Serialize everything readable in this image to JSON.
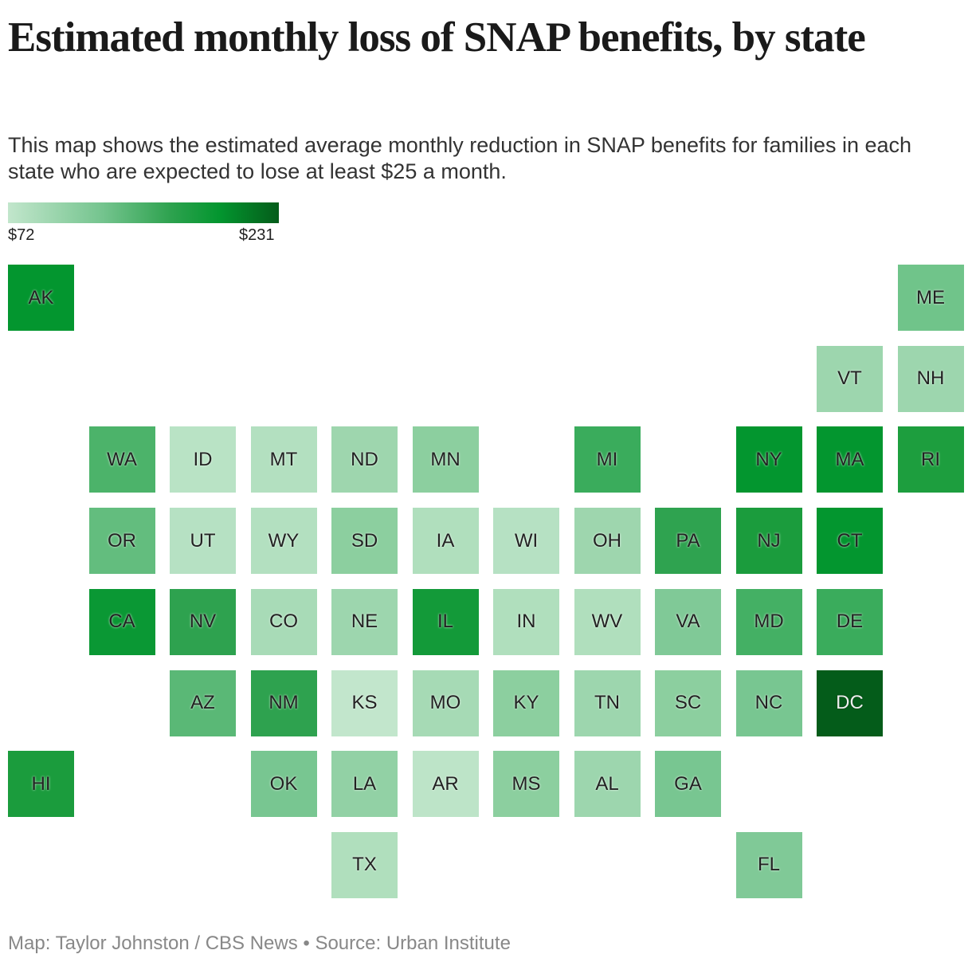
{
  "title": "Estimated monthly loss of SNAP benefits, by state",
  "subtitle": "This map shows the estimated average monthly reduction in SNAP benefits for families in each state who are expected to lose at least $25 a month.",
  "legend": {
    "min_label": "$72",
    "max_label": "$231",
    "min_color": "#c2e6cc",
    "max_color": "#045c1a"
  },
  "credit": "Map: Taylor Johnston / CBS News • Source: Urban Institute",
  "tiles": [
    {
      "state": "AK",
      "color": "#03962f"
    },
    {
      "state": "ME",
      "color": "#70c48a"
    },
    {
      "state": "VT",
      "color": "#9dd6ae"
    },
    {
      "state": "NH",
      "color": "#9dd6ae"
    },
    {
      "state": "WA",
      "color": "#4cb36a"
    },
    {
      "state": "ID",
      "color": "#b9e3c5"
    },
    {
      "state": "MT",
      "color": "#b3e0c0"
    },
    {
      "state": "ND",
      "color": "#9ed6ae"
    },
    {
      "state": "MN",
      "color": "#8ccf9f"
    },
    {
      "state": "MI",
      "color": "#3aac5c"
    },
    {
      "state": "NY",
      "color": "#03962f"
    },
    {
      "state": "MA",
      "color": "#03962f"
    },
    {
      "state": "RI",
      "color": "#1d9e3e"
    },
    {
      "state": "OR",
      "color": "#63bd7e"
    },
    {
      "state": "UT",
      "color": "#b6e1c3"
    },
    {
      "state": "WY",
      "color": "#b3e0c0"
    },
    {
      "state": "SD",
      "color": "#8ccf9f"
    },
    {
      "state": "IA",
      "color": "#b0dfbd"
    },
    {
      "state": "WI",
      "color": "#b6e1c3"
    },
    {
      "state": "OH",
      "color": "#9ed6ae"
    },
    {
      "state": "PA",
      "color": "#2fa350"
    },
    {
      "state": "NJ",
      "color": "#1b9c3d"
    },
    {
      "state": "CT",
      "color": "#03962f"
    },
    {
      "state": "CA",
      "color": "#0a9834"
    },
    {
      "state": "NV",
      "color": "#2ea24f"
    },
    {
      "state": "CO",
      "color": "#a8dbb7"
    },
    {
      "state": "NE",
      "color": "#9dd6ae"
    },
    {
      "state": "IL",
      "color": "#139a39"
    },
    {
      "state": "IN",
      "color": "#b0dfbd"
    },
    {
      "state": "WV",
      "color": "#b0dfbd"
    },
    {
      "state": "VA",
      "color": "#80c997"
    },
    {
      "state": "MD",
      "color": "#44b064"
    },
    {
      "state": "DE",
      "color": "#3aac5c"
    },
    {
      "state": "AZ",
      "color": "#5ab876"
    },
    {
      "state": "NM",
      "color": "#2ea24f"
    },
    {
      "state": "KS",
      "color": "#c2e6cc"
    },
    {
      "state": "MO",
      "color": "#a6dab5"
    },
    {
      "state": "KY",
      "color": "#8ccf9f"
    },
    {
      "state": "TN",
      "color": "#9dd6ae"
    },
    {
      "state": "SC",
      "color": "#8ccf9f"
    },
    {
      "state": "NC",
      "color": "#78c691"
    },
    {
      "state": "DC",
      "color": "#045c1a"
    },
    {
      "state": "HI",
      "color": "#1b9c3d"
    },
    {
      "state": "OK",
      "color": "#78c691"
    },
    {
      "state": "LA",
      "color": "#92d1a5"
    },
    {
      "state": "AR",
      "color": "#bde4c8"
    },
    {
      "state": "MS",
      "color": "#8ccf9f"
    },
    {
      "state": "AL",
      "color": "#9dd6ae"
    },
    {
      "state": "GA",
      "color": "#78c691"
    },
    {
      "state": "TX",
      "color": "#b0dfbd"
    },
    {
      "state": "FL",
      "color": "#80c997"
    }
  ]
}
